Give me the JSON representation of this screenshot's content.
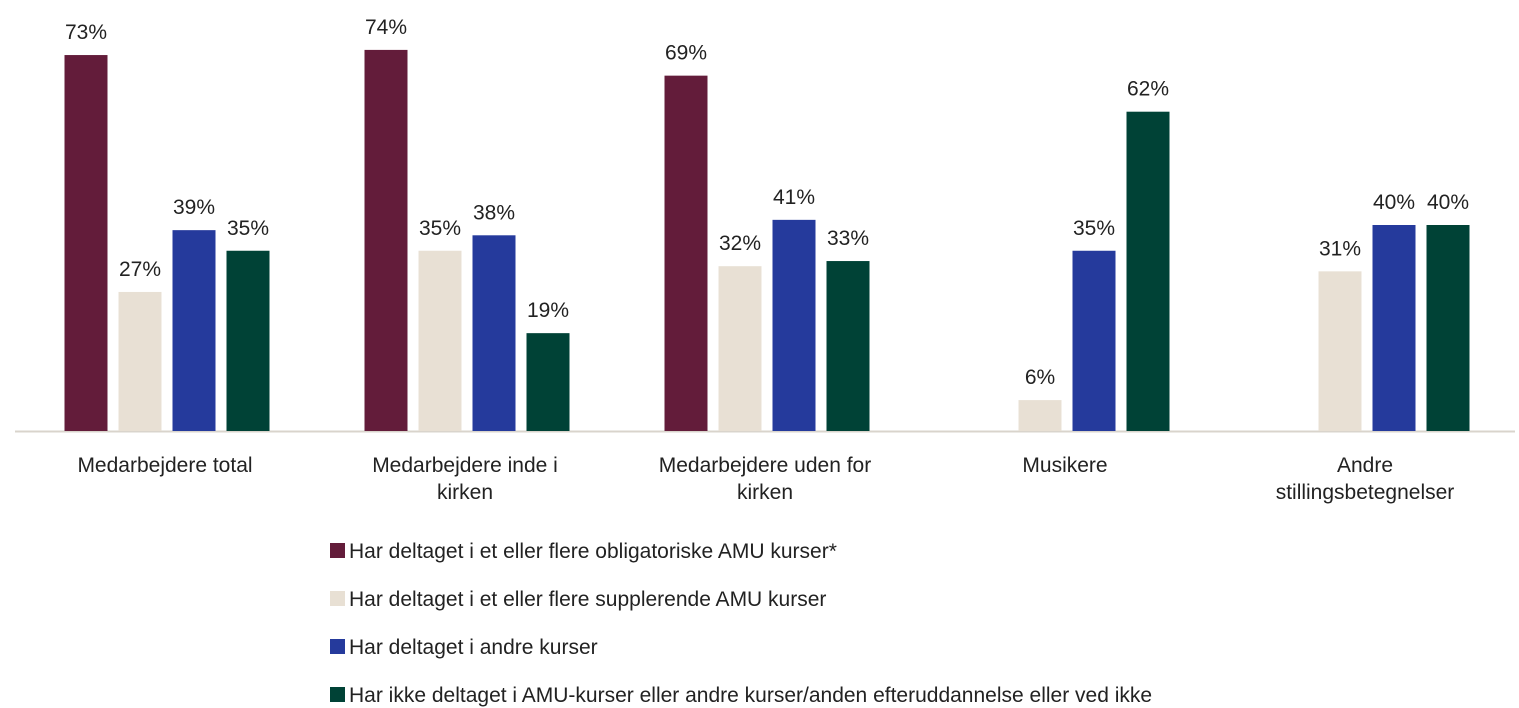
{
  "chart_data": {
    "type": "bar",
    "categories": [
      "Medarbejdere total",
      "Medarbejdere inde i kirken",
      "Medarbejdere uden for kirken",
      "Musikere",
      "Andre stillingsbetegnelser"
    ],
    "series": [
      {
        "name": "Har deltaget i et eller flere obligatoriske AMU kurser*",
        "color": "#631c3a",
        "values": [
          73,
          74,
          69,
          null,
          null
        ],
        "value_labels": [
          "73%",
          "74%",
          "69%",
          null,
          null
        ]
      },
      {
        "name": "Har deltaget i et eller flere supplerende AMU kurser",
        "color": "#e8e0d4",
        "values": [
          27,
          35,
          32,
          6,
          31
        ],
        "value_labels": [
          "27%",
          "35%",
          "32%",
          "6%",
          "31%"
        ]
      },
      {
        "name": "Har deltaget i andre kurser",
        "color": "#253a9c",
        "values": [
          39,
          38,
          41,
          35,
          40
        ],
        "value_labels": [
          "39%",
          "38%",
          "41%",
          "35%",
          "40%"
        ]
      },
      {
        "name": "Har ikke deltaget i AMU-kurser eller andre kurser/anden efteruddannelse eller ved ikke",
        "color": "#004236",
        "values": [
          35,
          19,
          33,
          62,
          40
        ],
        "value_labels": [
          "35%",
          "19%",
          "33%",
          "62%",
          "40%"
        ]
      }
    ]
  }
}
